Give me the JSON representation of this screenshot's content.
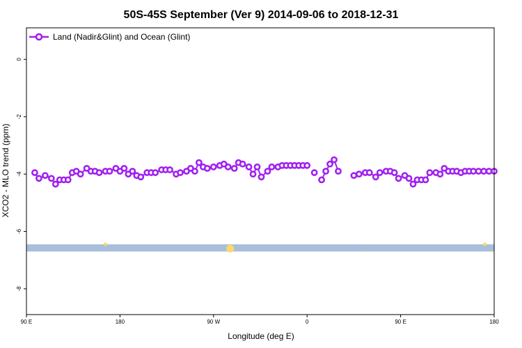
{
  "chart_data": {
    "type": "line",
    "title": "50S-45S September (Ver 9)   2014-09-06 to 2018-12-31",
    "xlabel": "Longitude (deg E)",
    "ylabel": "XCO2 - MLO trend (ppm)",
    "x_ticks": [
      {
        "value": 90,
        "label": "90 E"
      },
      {
        "value": 180,
        "label": "180"
      },
      {
        "value": 270,
        "label": "90 W"
      },
      {
        "value": 360,
        "label": "0"
      },
      {
        "value": 450,
        "label": "90 E"
      },
      {
        "value": 540,
        "label": "180"
      }
    ],
    "y_ticks": [
      0,
      -2,
      -4,
      -6,
      -8
    ],
    "xlim": [
      90,
      540
    ],
    "ylim": [
      -8.9,
      1.1
    ],
    "legend": {
      "position": "top-left",
      "entries": [
        "Land (Nadir&Glint) and Ocean (Glint)"
      ]
    },
    "grid": false,
    "colors": {
      "series": "#a020f0",
      "band": "#a8bfdc",
      "markers": "#ffd966"
    },
    "series": [
      {
        "name": "Land (Nadir&Glint) and Ocean (Glint)",
        "segments": [
          {
            "x": [
              98,
              102,
              108,
              114,
              118,
              122,
              126,
              130,
              134,
              138,
              142,
              148,
              152,
              156,
              160,
              166,
              170,
              176,
              180,
              184,
              188,
              192,
              196,
              200,
              206,
              210,
              214,
              220,
              224,
              228,
              234,
              238,
              244,
              248,
              252,
              256,
              260,
              264,
              270,
              276,
              280,
              284,
              290,
              294,
              298,
              304,
              308,
              312,
              316,
              322,
              326,
              332,
              336,
              340,
              344,
              348,
              352,
              356,
              360
            ],
            "y": [
              -3.95,
              -4.15,
              -4.05,
              -4.15,
              -4.35,
              -4.2,
              -4.2,
              -4.2,
              -3.95,
              -3.9,
              -4.0,
              -3.8,
              -3.9,
              -3.9,
              -3.95,
              -3.9,
              -3.9,
              -3.8,
              -3.9,
              -3.8,
              -4.0,
              -3.9,
              -4.05,
              -4.1,
              -3.95,
              -3.95,
              -3.95,
              -3.85,
              -3.85,
              -3.85,
              -4.0,
              -3.95,
              -3.9,
              -3.8,
              -3.9,
              -3.6,
              -3.75,
              -3.8,
              -3.75,
              -3.7,
              -3.65,
              -3.75,
              -3.8,
              -3.6,
              -3.65,
              -3.75,
              -4.0,
              -3.75,
              -4.1,
              -3.9,
              -3.75,
              -3.75,
              -3.7,
              -3.7,
              -3.7,
              -3.7,
              -3.7,
              -3.7,
              -3.7
            ]
          },
          {
            "x": [
              367
            ],
            "y": [
              -3.95
            ]
          },
          {
            "x": [
              374,
              378,
              382,
              386,
              390
            ],
            "y": [
              -4.2,
              -3.9,
              -3.65,
              -3.5,
              -3.9
            ]
          },
          {
            "x": [
              405,
              410,
              416,
              420,
              426,
              430,
              436,
              440,
              444,
              448,
              454,
              458,
              462,
              466,
              470,
              474,
              478,
              484,
              488,
              492,
              496,
              500,
              504,
              508,
              512,
              516,
              520,
              525,
              530,
              535,
              540
            ],
            "y": [
              -4.05,
              -4.0,
              -3.95,
              -3.95,
              -4.1,
              -3.95,
              -3.9,
              -3.9,
              -3.95,
              -4.15,
              -4.05,
              -4.15,
              -4.35,
              -4.2,
              -4.2,
              -4.2,
              -3.95,
              -3.95,
              -4.0,
              -3.8,
              -3.9,
              -3.9,
              -3.9,
              -3.95,
              -3.9,
              -3.9,
              -3.9,
              -3.9,
              -3.9,
              -3.9,
              -3.9
            ]
          }
        ]
      }
    ],
    "band": {
      "y_range": [
        -6.45,
        -6.7
      ]
    },
    "band_markers": [
      {
        "x": 166,
        "y": -6.45,
        "size": "small"
      },
      {
        "x": 286,
        "y": -6.6,
        "size": "large"
      },
      {
        "x": 531,
        "y": -6.45,
        "size": "small"
      },
      {
        "x": 414,
        "y": -6.7,
        "size": "tiny"
      }
    ]
  }
}
